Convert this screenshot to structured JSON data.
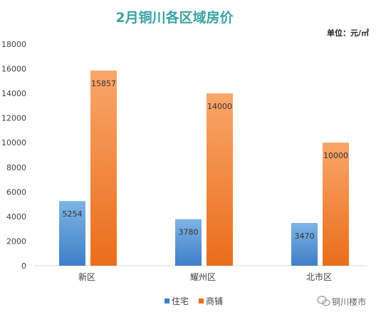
{
  "chart_data": {
    "type": "bar",
    "title": "2月铜川各区域房价",
    "unit_label": "单位：元/㎡",
    "categories": [
      "新区",
      "耀州区",
      "北市区"
    ],
    "series": [
      {
        "name": "住宅",
        "values": [
          5254,
          3780,
          3470
        ]
      },
      {
        "name": "商铺",
        "values": [
          15857,
          14000,
          10000
        ]
      }
    ],
    "ylim": [
      0,
      18000
    ],
    "yticks": [
      0,
      2000,
      4000,
      6000,
      8000,
      10000,
      12000,
      14000,
      16000,
      18000
    ],
    "grid": false,
    "legend": "bottom-center",
    "colors": {
      "title": "#3aa2a3",
      "住宅_light": "#7fb4e5",
      "住宅_dark": "#3d7fc8",
      "商铺_light": "#f9a66a",
      "商铺_dark": "#ea6d1b",
      "axis": "#d9d9d9",
      "text": "#404040"
    }
  },
  "watermark": "铜川楼市"
}
